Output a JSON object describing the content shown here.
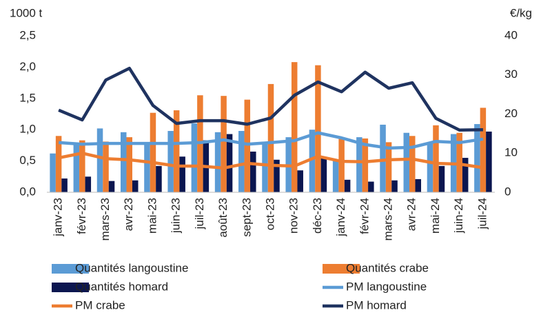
{
  "chart_data": {
    "type": "bar",
    "y_label": "1000 t",
    "y2_label": "€/kg",
    "categories": [
      "janv-23",
      "févr-23",
      "mars-23",
      "avr-23",
      "mai-23",
      "juin-23",
      "juil-23",
      "août-23",
      "sept-23",
      "oct-23",
      "nov-23",
      "déc-23",
      "janv-24",
      "févr-24",
      "mars-24",
      "avr-24",
      "mai-24",
      "juin-24",
      "juil-24"
    ],
    "ylim": [
      0,
      2.5
    ],
    "yticks": [
      {
        "value": 0,
        "label": "0,0"
      },
      {
        "value": 0.5,
        "label": "0,5"
      },
      {
        "value": 1,
        "label": "1,0"
      },
      {
        "value": 1.5,
        "label": "1,5"
      },
      {
        "value": 2,
        "label": "2,0"
      },
      {
        "value": 2.5,
        "label": "2,5"
      }
    ],
    "y2lim": [
      0,
      40
    ],
    "y2ticks": [
      0,
      10,
      20,
      30,
      40
    ],
    "series": [
      {
        "name": "Quantités langoustine",
        "type": "bar",
        "color": "#5b9bd5",
        "values": [
          0.62,
          0.78,
          1.02,
          0.96,
          0.8,
          0.98,
          1.1,
          0.96,
          0.98,
          0.78,
          0.88,
          1.0,
          0.5,
          0.88,
          1.08,
          0.95,
          0.8,
          0.93,
          1.09
        ]
      },
      {
        "name": "Quantités crabe",
        "type": "bar",
        "color": "#ed7d31",
        "values": [
          0.9,
          0.83,
          0.81,
          0.88,
          1.27,
          1.31,
          1.55,
          1.54,
          1.48,
          1.73,
          2.08,
          2.03,
          0.88,
          0.86,
          0.8,
          0.9,
          1.07,
          0.95,
          1.35
        ]
      },
      {
        "name": "Quantités homard",
        "type": "bar",
        "color": "#0b1650",
        "values": [
          0.22,
          0.25,
          0.18,
          0.19,
          0.42,
          0.57,
          0.83,
          0.93,
          0.65,
          0.52,
          0.35,
          0.55,
          0.2,
          0.17,
          0.19,
          0.21,
          0.42,
          0.55,
          0.97
        ]
      },
      {
        "name": "PM langoustine",
        "type": "line",
        "axis": "y2",
        "color": "#5b9bd5",
        "values": [
          12.7,
          12.3,
          12.5,
          12.5,
          12.5,
          12.5,
          12.7,
          13.4,
          12.3,
          12.7,
          13.2,
          15.2,
          13.9,
          12.2,
          11.3,
          11.5,
          13.0,
          12.7,
          13.6
        ]
      },
      {
        "name": "PM crabe",
        "type": "line",
        "axis": "y2",
        "color": "#ed7d31",
        "values": [
          8.8,
          10.0,
          8.6,
          8.3,
          7.6,
          6.7,
          6.7,
          6.2,
          7.4,
          6.9,
          6.7,
          9.2,
          7.9,
          7.8,
          8.3,
          8.5,
          7.4,
          7.2,
          6.3
        ]
      },
      {
        "name": "PM homard",
        "type": "line",
        "axis": "y2",
        "color": "#1f3360",
        "values": [
          21.0,
          18.5,
          28.7,
          31.7,
          22.2,
          17.6,
          18.3,
          18.3,
          17.4,
          19.0,
          24.8,
          28.2,
          25.7,
          30.7,
          26.6,
          28.0,
          18.9,
          15.9,
          16.0
        ]
      }
    ]
  }
}
